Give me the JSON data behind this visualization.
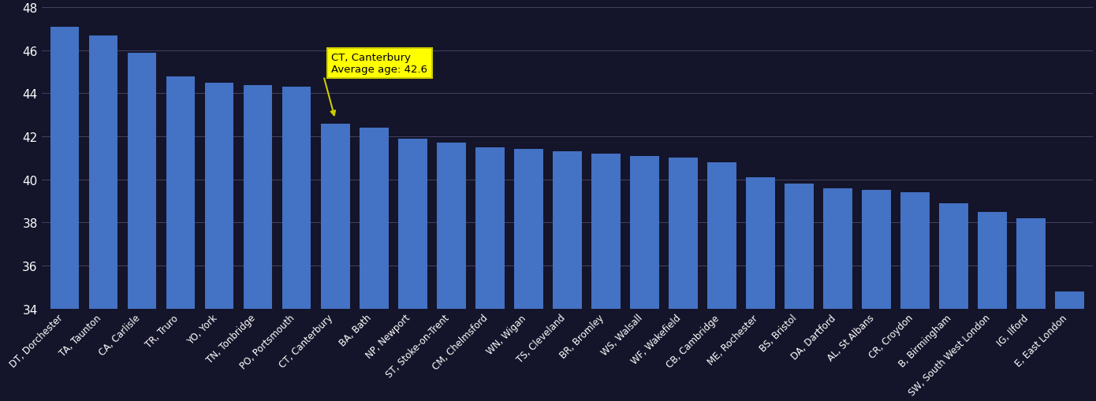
{
  "categories": [
    "DT, Dorchester",
    "TA, Taunton",
    "CA, Carlisle",
    "TR, Truro",
    "YO, York",
    "TN, Tonbridge",
    "PO, Portsmouth",
    "CT, Canterbury",
    "BA, Bath",
    "NP, Newport",
    "ST, Stoke-on-Trent",
    "CM, Chelmsford",
    "WN, Wigan",
    "TS, Cleveland",
    "BR, Bromley",
    "WS, Walsall",
    "WF, Wakefield",
    "CB, Cambridge",
    "ME, Rochester",
    "BS, Bristol",
    "DA, Dartford",
    "AL, St Albans",
    "CR, Croydon",
    "B, Birmingham",
    "SW, South West London",
    "IG, Ilford",
    "E, East London"
  ],
  "values": [
    47.1,
    46.7,
    45.9,
    44.8,
    44.5,
    44.4,
    44.3,
    42.6,
    42.4,
    41.9,
    41.7,
    41.5,
    41.4,
    41.3,
    41.2,
    41.1,
    41.0,
    40.8,
    40.1,
    39.8,
    39.6,
    39.5,
    39.4,
    38.9,
    38.5,
    38.2,
    34.8
  ],
  "bar_color": "#4472c4",
  "highlight_index": 7,
  "annotation_line1": "CT, Canterbury",
  "annotation_line2": "Average age: ",
  "annotation_value": "42.6",
  "annotation_bg": "#ffff00",
  "annotation_edge": "#cccc00",
  "background_color": "#14142a",
  "grid_color": "#4a4a6a",
  "text_color": "#ffffff",
  "ylim_min": 34,
  "ylim_max": 48,
  "ytick_step": 2,
  "arrow_color": "#cccc00",
  "label_fontsize": 8.5,
  "ytick_fontsize": 11
}
